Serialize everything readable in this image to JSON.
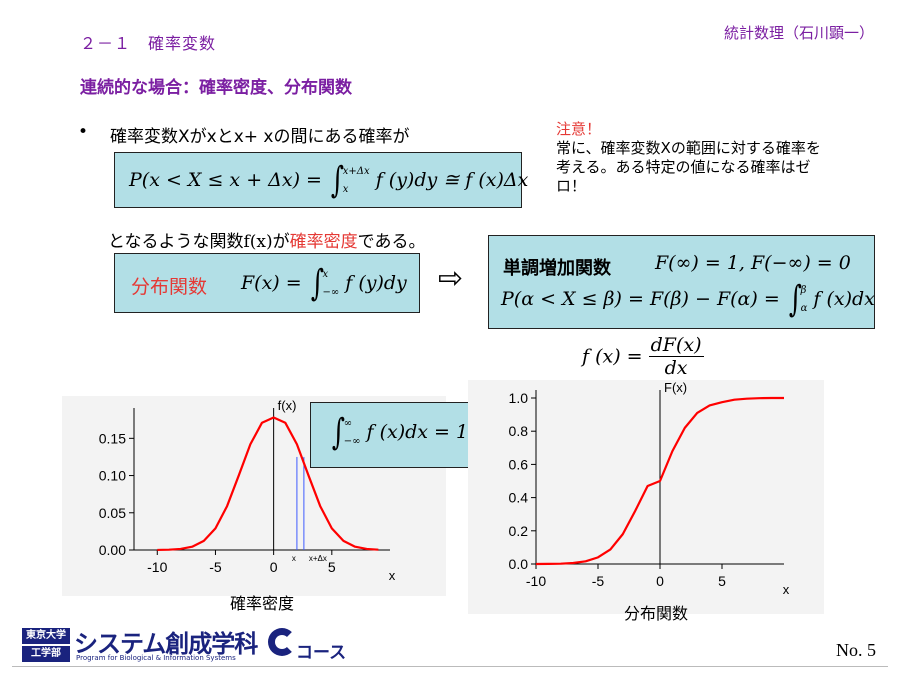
{
  "header": {
    "section": "２－１　確率変数",
    "course": "統計数理（石川顕一）",
    "title": "連続的な場合：確率密度、分布関数"
  },
  "bullet_text": "確率変数Xがxとx+ xの間にある確率が",
  "formula_density": {
    "lhs": "P(x < X ≤ x + Δx) =",
    "upper": "x+Δx",
    "lower": "x",
    "integrand": "f (y)dy ≅ f (x)Δx"
  },
  "density_sentence": {
    "pre": "となるような関数",
    "fx": "f(x)",
    "mid": "が",
    "term": "確率密度",
    "post": "である。"
  },
  "note": {
    "label": "注意！",
    "body": "常に、確率変数Xの範囲に対する確率を考える。ある特定の値になる確率はゼロ！"
  },
  "cdf_box": {
    "label": "分布関数",
    "lhs": "F(x) =",
    "upper": "x",
    "lower": "−∞",
    "integrand": "f (y)dy"
  },
  "arrow_symbol": "⇨",
  "monotone_box": {
    "label": "単調増加関数",
    "limits": "F(∞) = 1, F(−∞) = 0",
    "prob_lhs": "P(α < X ≤ β) = F(β) − F(α) =",
    "upper": "β",
    "lower": "α",
    "integrand": "f (x)dx"
  },
  "derivative": {
    "lhs": "f (x) =",
    "num": "dF(x)",
    "den": "dx"
  },
  "normalization": {
    "upper": "∞",
    "lower": "−∞",
    "integrand": "f (x)dx = 1"
  },
  "chart_data": [
    {
      "type": "line",
      "caption": "確率密度",
      "ylabel": "f(x)",
      "xlabel": "x",
      "xlim": [
        -12,
        10
      ],
      "ylim": [
        0,
        0.18
      ],
      "xticks": [
        "-10",
        "-5",
        "0",
        "5"
      ],
      "yticks": [
        "0.00",
        "0.05",
        "0.10",
        "0.15"
      ],
      "series": [
        {
          "color": "#ff0000",
          "x": [
            -10,
            -9,
            -8,
            -7,
            -6,
            -5,
            -4,
            -3,
            -2,
            -1,
            0,
            1,
            2,
            3,
            4,
            5,
            6,
            7,
            8,
            9
          ],
          "y": [
            0.0001,
            0.0004,
            0.0014,
            0.0044,
            0.0122,
            0.029,
            0.059,
            0.1,
            0.142,
            0.171,
            0.178,
            0.171,
            0.142,
            0.1,
            0.059,
            0.029,
            0.0122,
            0.0044,
            0.0014,
            0.0004
          ]
        }
      ],
      "markers": [
        "x",
        "x+Δx"
      ],
      "marker_x": [
        2.0,
        2.6
      ]
    },
    {
      "type": "line",
      "caption": "分布関数",
      "ylabel": "F(x)",
      "xlabel": "x",
      "xlim": [
        -10,
        10
      ],
      "ylim": [
        0,
        1
      ],
      "xticks": [
        "-10",
        "-5",
        "0",
        "5"
      ],
      "yticks": [
        "0.0",
        "0.2",
        "0.4",
        "0.6",
        "0.8",
        "1.0"
      ],
      "series": [
        {
          "color": "#ff0000",
          "x": [
            -10,
            -9,
            -8,
            -7,
            -6,
            -5,
            -4,
            -3,
            -2,
            -1,
            0,
            1,
            2,
            3,
            4,
            5,
            6,
            7,
            8,
            9,
            10
          ],
          "y": [
            0.0002,
            0.0007,
            0.002,
            0.006,
            0.016,
            0.04,
            0.088,
            0.18,
            0.32,
            0.47,
            0.5,
            0.68,
            0.82,
            0.91,
            0.955,
            0.975,
            0.99,
            0.996,
            0.999,
            1.0,
            1.0
          ]
        }
      ]
    }
  ],
  "footer": {
    "logo_top": "東京大学",
    "logo_bottom": "工学部",
    "logo_main": "システム創成学科",
    "logo_sub": "Program for Biological & Information Systems",
    "logo_course": "コース",
    "page": "No. 5"
  }
}
